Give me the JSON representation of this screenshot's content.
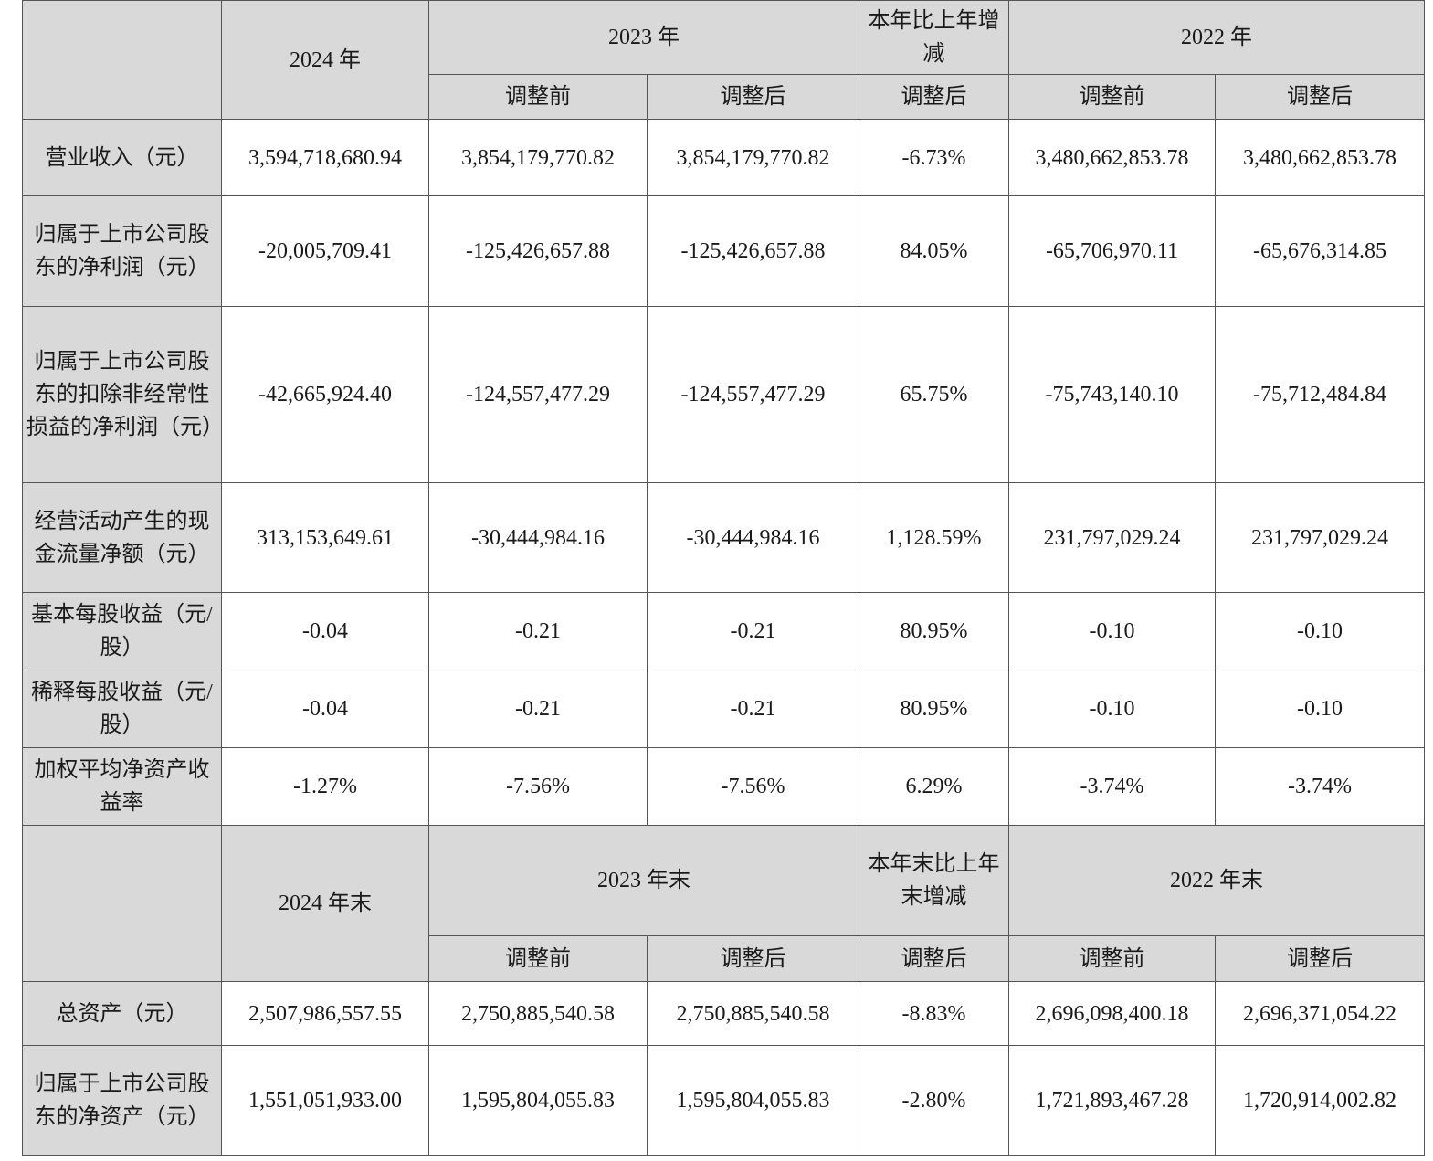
{
  "header1": {
    "col_2024": "2024 年",
    "col_2023": "2023 年",
    "col_change": "本年比上年增减",
    "col_2022": "2022 年",
    "before": "调整前",
    "after": "调整后"
  },
  "rows1": [
    {
      "label": "营业收入（元）",
      "v2024": "3,594,718,680.94",
      "v2023_before": "3,854,179,770.82",
      "v2023_after": "3,854,179,770.82",
      "change": "-6.73%",
      "v2022_before": "3,480,662,853.78",
      "v2022_after": "3,480,662,853.78"
    },
    {
      "label": "归属于上市公司股东的净利润（元）",
      "v2024": "-20,005,709.41",
      "v2023_before": "-125,426,657.88",
      "v2023_after": "-125,426,657.88",
      "change": "84.05%",
      "v2022_before": "-65,706,970.11",
      "v2022_after": "-65,676,314.85"
    },
    {
      "label": "归属于上市公司股东的扣除非经常性损益的净利润（元）",
      "v2024": "-42,665,924.40",
      "v2023_before": "-124,557,477.29",
      "v2023_after": "-124,557,477.29",
      "change": "65.75%",
      "v2022_before": "-75,743,140.10",
      "v2022_after": "-75,712,484.84"
    },
    {
      "label": "经营活动产生的现金流量净额（元）",
      "v2024": "313,153,649.61",
      "v2023_before": "-30,444,984.16",
      "v2023_after": "-30,444,984.16",
      "change": "1,128.59%",
      "v2022_before": "231,797,029.24",
      "v2022_after": "231,797,029.24"
    },
    {
      "label": "基本每股收益（元/股）",
      "v2024": "-0.04",
      "v2023_before": "-0.21",
      "v2023_after": "-0.21",
      "change": "80.95%",
      "v2022_before": "-0.10",
      "v2022_after": "-0.10"
    },
    {
      "label": "稀释每股收益（元/股）",
      "v2024": "-0.04",
      "v2023_before": "-0.21",
      "v2023_after": "-0.21",
      "change": "80.95%",
      "v2022_before": "-0.10",
      "v2022_after": "-0.10"
    },
    {
      "label": "加权平均净资产收益率",
      "v2024": "-1.27%",
      "v2023_before": "-7.56%",
      "v2023_after": "-7.56%",
      "change": "6.29%",
      "v2022_before": "-3.74%",
      "v2022_after": "-3.74%"
    }
  ],
  "header2": {
    "col_2024": "2024 年末",
    "col_2023": "2023 年末",
    "col_change": "本年末比上年末增减",
    "col_2022": "2022 年末",
    "before": "调整前",
    "after": "调整后"
  },
  "rows2": [
    {
      "label": "总资产（元）",
      "v2024": "2,507,986,557.55",
      "v2023_before": "2,750,885,540.58",
      "v2023_after": "2,750,885,540.58",
      "change": "-8.83%",
      "v2022_before": "2,696,098,400.18",
      "v2022_after": "2,696,371,054.22"
    },
    {
      "label": "归属于上市公司股东的净资产（元）",
      "v2024": "1,551,051,933.00",
      "v2023_before": "1,595,804,055.83",
      "v2023_after": "1,595,804,055.83",
      "change": "-2.80%",
      "v2022_before": "1,721,893,467.28",
      "v2022_after": "1,720,914,002.82"
    }
  ]
}
